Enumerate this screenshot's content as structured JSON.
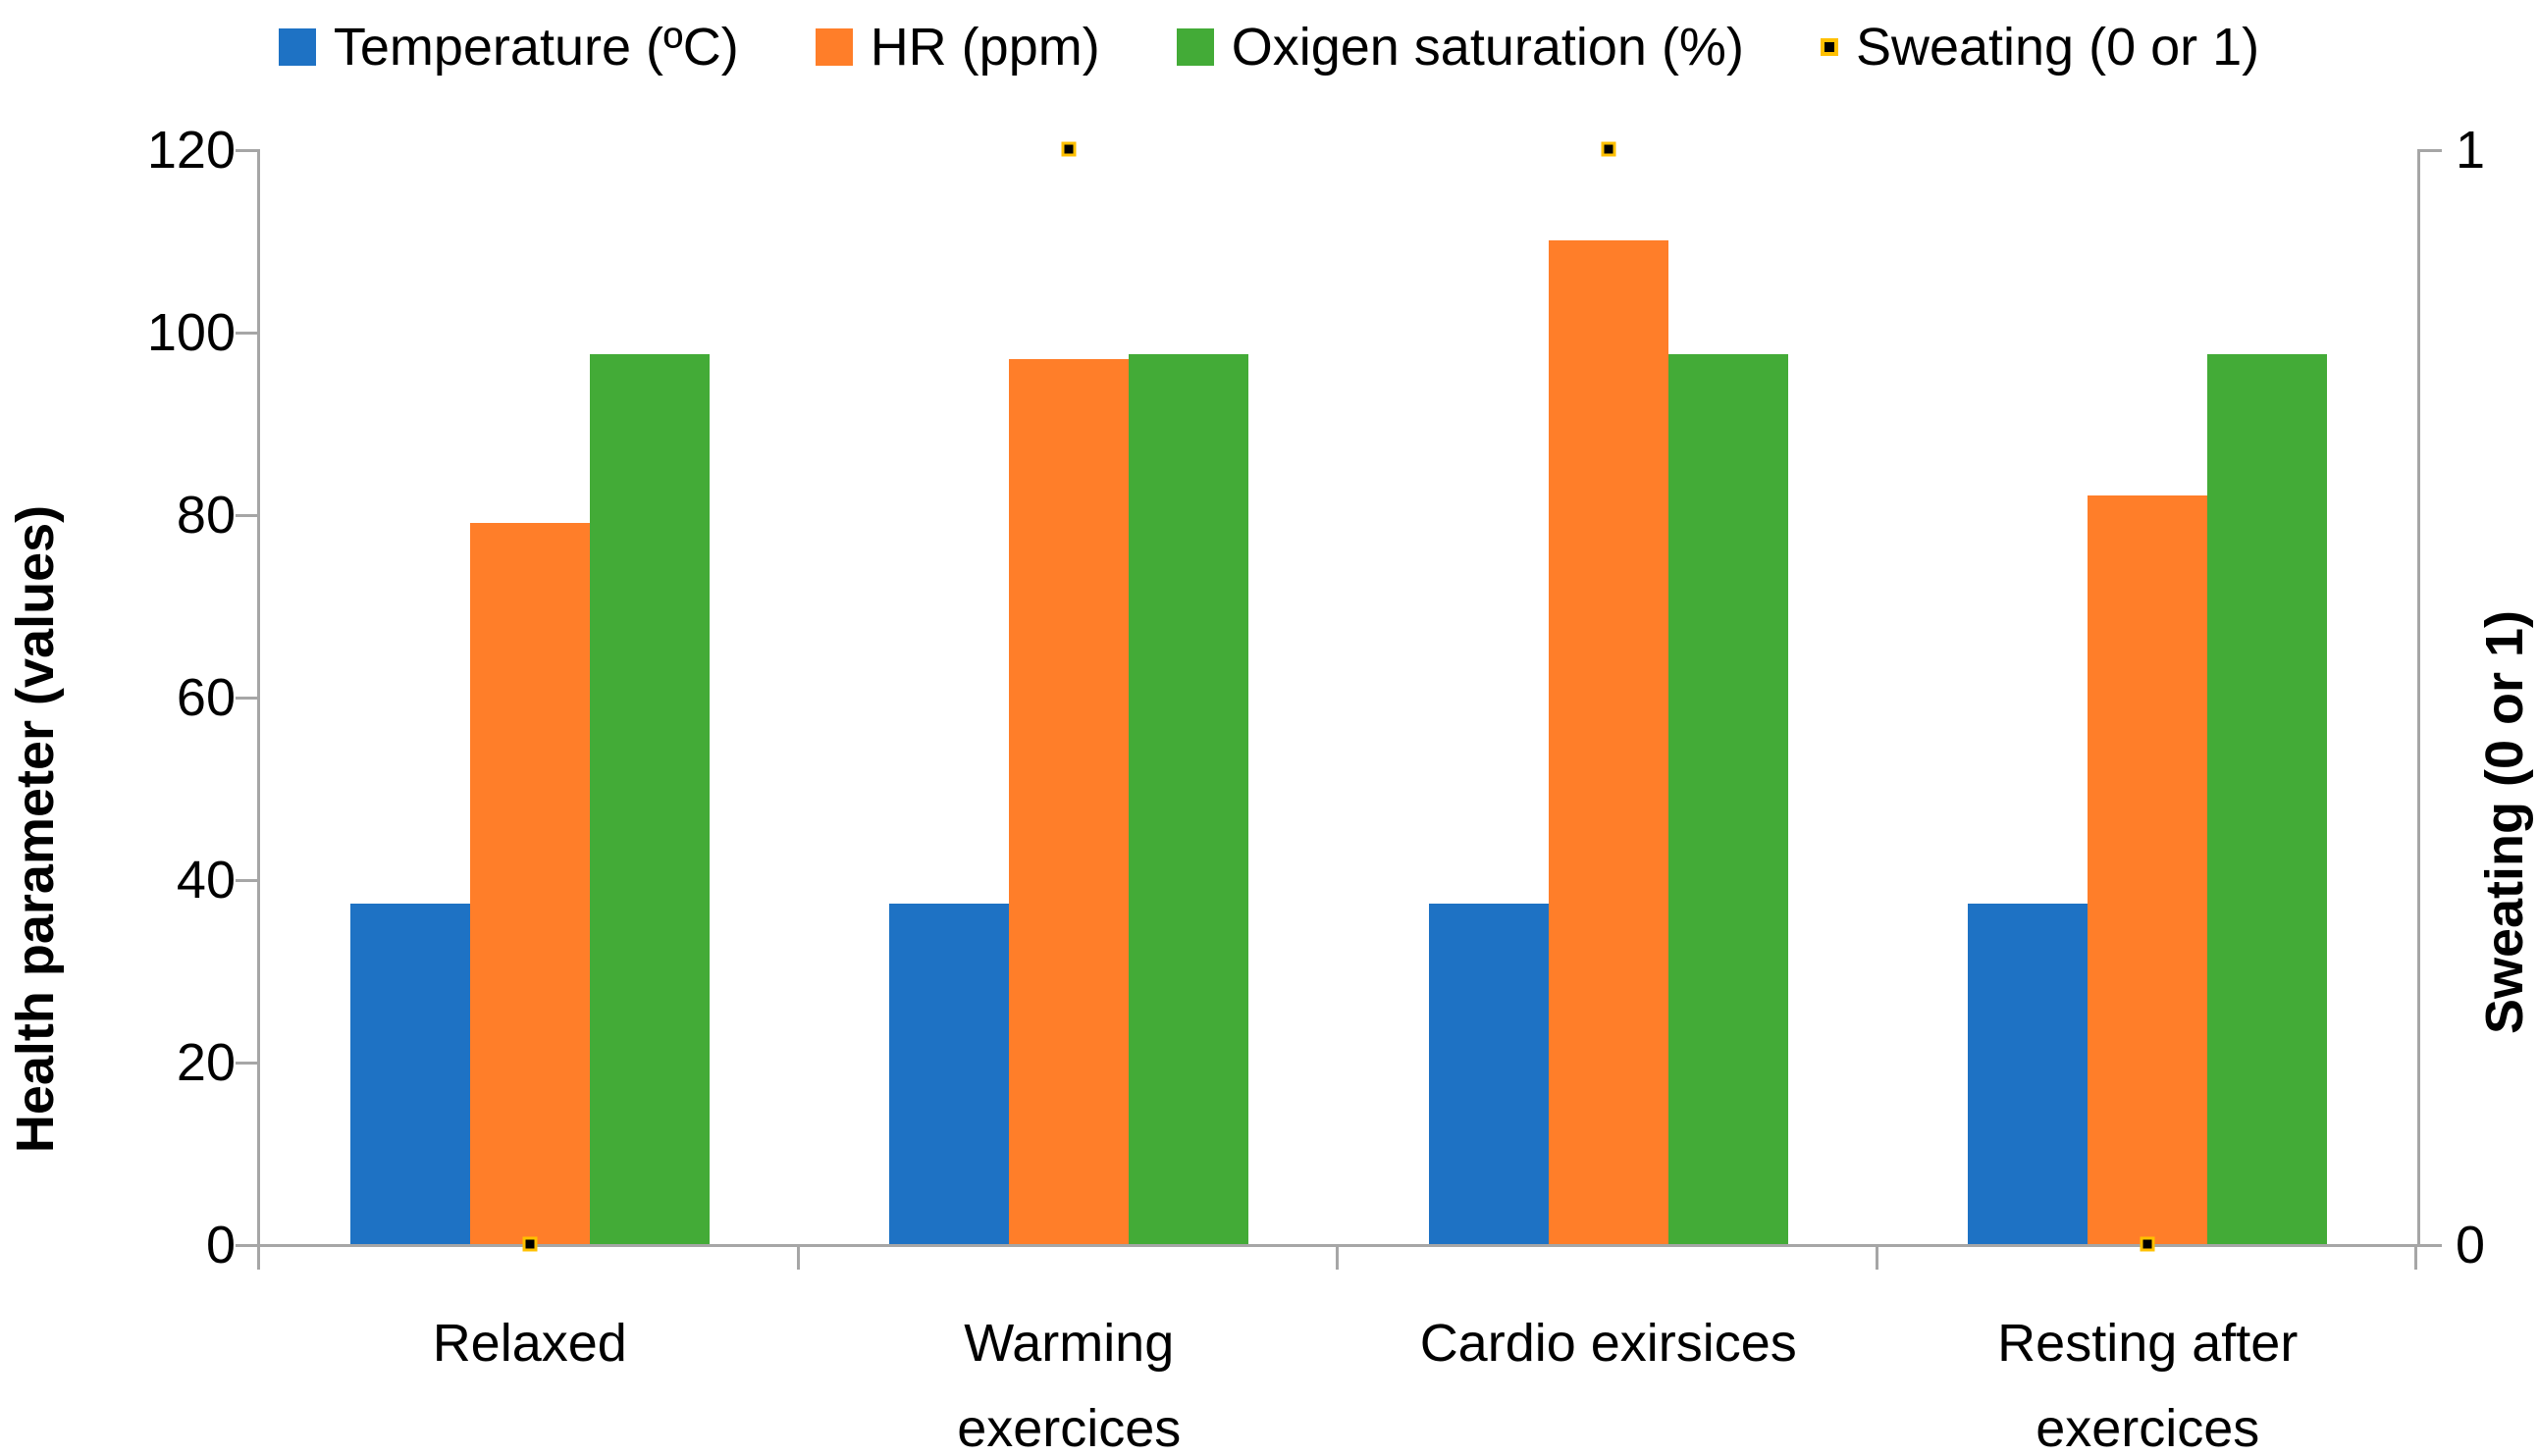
{
  "chart_data": {
    "type": "bar",
    "title": "",
    "categories": [
      "Relaxed",
      "Warming exercices",
      "Cardio exirsices",
      "Resting after exercices"
    ],
    "category_lines": [
      [
        "Relaxed"
      ],
      [
        "Warming",
        "exercices"
      ],
      [
        "Cardio exirsices"
      ],
      [
        "Resting after",
        "exercices"
      ]
    ],
    "series": [
      {
        "name": "Temperature (ºC)",
        "color": "#1E72C4",
        "values": [
          37.3,
          37.3,
          37.3,
          37.3
        ]
      },
      {
        "name": "HR (ppm)",
        "color": "#FF7E29",
        "values": [
          79,
          97,
          110,
          82
        ]
      },
      {
        "name": "Oxigen saturation (%)",
        "color": "#43AB37",
        "values": [
          97.5,
          97.5,
          97.5,
          97.5
        ]
      }
    ],
    "scatter_series": {
      "name": "Sweating (0 or 1)",
      "values": [
        0,
        1,
        1,
        0
      ],
      "axis": "right",
      "marker_fill": "#000000",
      "marker_border": "#FFC000"
    },
    "left_axis": {
      "title": "Health parameter (values)",
      "min": 0,
      "max": 120,
      "ticks": [
        0,
        20,
        40,
        60,
        80,
        100,
        120
      ]
    },
    "right_axis": {
      "title": "Sweating (0 or 1)",
      "min": 0,
      "max": 1,
      "ticks": [
        0,
        1
      ]
    },
    "legend_position": "top",
    "grid": false,
    "axis_color": "#A6A6A6"
  }
}
